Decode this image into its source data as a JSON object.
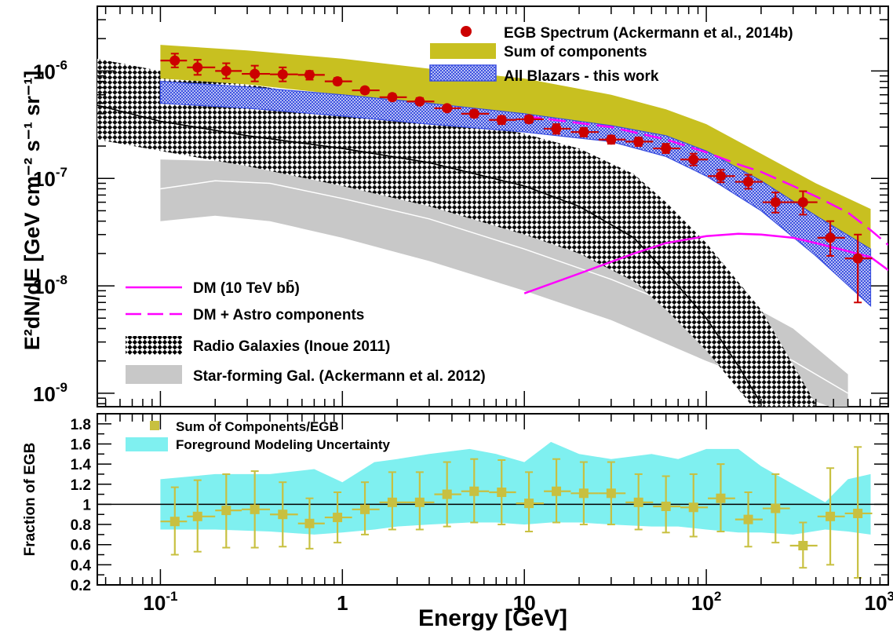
{
  "colors": {
    "egb": "#cc0000",
    "sum_band": "#c8c020",
    "blazar_band": "#3a4fe0",
    "dm": "#ff00ff",
    "radio_hatch": "#000000",
    "starforming": "#c8c8c8",
    "ratio_marker": "#c8c040",
    "foreground_band": "#7ff0f0"
  },
  "chart_data": [
    {
      "type": "line",
      "panel": "spectrum",
      "xlabel": "Energy [GeV]",
      "ylabel": "E²dN/dE [GeV cm⁻² s⁻¹ sr⁻¹]",
      "x_scale": "log",
      "y_scale": "log",
      "xlim": [
        0.045,
        1000
      ],
      "ylim": [
        7.5e-10,
        4e-06
      ],
      "x_ticks": [
        {
          "value": 0.1,
          "base": "10",
          "exp": "-1"
        },
        {
          "value": 1,
          "base": "1",
          "exp": ""
        },
        {
          "value": 10,
          "base": "10",
          "exp": ""
        },
        {
          "value": 100,
          "base": "10",
          "exp": "2"
        },
        {
          "value": 1000,
          "base": "10",
          "exp": "3"
        }
      ],
      "y_ticks": [
        {
          "value": 1e-09,
          "base": "10",
          "exp": "-9"
        },
        {
          "value": 1e-08,
          "base": "10",
          "exp": "-8"
        },
        {
          "value": 1e-07,
          "base": "10",
          "exp": "-7"
        },
        {
          "value": 1e-06,
          "base": "10",
          "exp": "-6"
        }
      ],
      "legend_top_right": [
        {
          "key": "egb",
          "label": "EGB Spectrum (Ackermann et al., 2014b)"
        },
        {
          "key": "sum",
          "label": "Sum of components"
        },
        {
          "key": "blazars",
          "label": "All Blazars - this work"
        }
      ],
      "legend_bottom_left": [
        {
          "key": "dm",
          "label": "DM  (10 TeV bb̄)"
        },
        {
          "key": "dm_astro",
          "label": "DM + Astro components"
        },
        {
          "key": "radio",
          "label": "Radio Galaxies (Inoue 2011)"
        },
        {
          "key": "starforming",
          "label": "Star-forming Gal. (Ackermann et al. 2012)"
        }
      ],
      "egb_points": [
        {
          "x": 0.12,
          "y": 1.25e-06,
          "xlo": 0.1,
          "xhi": 0.14,
          "ylo": 1.08e-06,
          "yhi": 1.45e-06
        },
        {
          "x": 0.16,
          "y": 1.08e-06,
          "xlo": 0.14,
          "xhi": 0.2,
          "ylo": 9.2e-07,
          "yhi": 1.27e-06
        },
        {
          "x": 0.23,
          "y": 1e-06,
          "xlo": 0.2,
          "xhi": 0.28,
          "ylo": 8.5e-07,
          "yhi": 1.18e-06
        },
        {
          "x": 0.33,
          "y": 9.4e-07,
          "xlo": 0.28,
          "xhi": 0.4,
          "ylo": 8e-07,
          "yhi": 1.12e-06
        },
        {
          "x": 0.47,
          "y": 9.3e-07,
          "xlo": 0.4,
          "xhi": 0.57,
          "ylo": 8e-07,
          "yhi": 1.08e-06
        },
        {
          "x": 0.66,
          "y": 9.2e-07,
          "xlo": 0.57,
          "xhi": 0.8,
          "ylo": 8.3e-07,
          "yhi": 1e-06
        },
        {
          "x": 0.94,
          "y": 8e-07,
          "xlo": 0.8,
          "xhi": 1.13,
          "ylo": 7.5e-07,
          "yhi": 8.6e-07
        },
        {
          "x": 1.33,
          "y": 6.6e-07,
          "xlo": 1.13,
          "xhi": 1.6,
          "ylo": 6.2e-07,
          "yhi": 7e-07
        },
        {
          "x": 1.88,
          "y": 5.7e-07,
          "xlo": 1.6,
          "xhi": 2.26,
          "ylo": 5.3e-07,
          "yhi": 6.1e-07
        },
        {
          "x": 2.66,
          "y": 5.2e-07,
          "xlo": 2.26,
          "xhi": 3.2,
          "ylo": 4.9e-07,
          "yhi": 5.6e-07
        },
        {
          "x": 3.76,
          "y": 4.5e-07,
          "xlo": 3.2,
          "xhi": 4.5,
          "ylo": 4.2e-07,
          "yhi": 4.8e-07
        },
        {
          "x": 5.3,
          "y": 4e-07,
          "xlo": 4.5,
          "xhi": 6.4,
          "ylo": 3.7e-07,
          "yhi": 4.3e-07
        },
        {
          "x": 7.5,
          "y": 3.5e-07,
          "xlo": 6.4,
          "xhi": 9.0,
          "ylo": 3.2e-07,
          "yhi": 3.8e-07
        },
        {
          "x": 10.6,
          "y": 3.55e-07,
          "xlo": 9.0,
          "xhi": 12.8,
          "ylo": 3.3e-07,
          "yhi": 3.8e-07
        },
        {
          "x": 15.0,
          "y": 2.9e-07,
          "xlo": 12.8,
          "xhi": 18.0,
          "ylo": 2.6e-07,
          "yhi": 3.2e-07
        },
        {
          "x": 21.2,
          "y": 2.7e-07,
          "xlo": 18.0,
          "xhi": 25.6,
          "ylo": 2.45e-07,
          "yhi": 2.95e-07
        },
        {
          "x": 30.0,
          "y": 2.3e-07,
          "xlo": 25.6,
          "xhi": 36.0,
          "ylo": 2.1e-07,
          "yhi": 2.5e-07
        },
        {
          "x": 42.4,
          "y": 2.2e-07,
          "xlo": 36.0,
          "xhi": 51.0,
          "ylo": 2e-07,
          "yhi": 2.4e-07
        },
        {
          "x": 60.0,
          "y": 1.9e-07,
          "xlo": 51.0,
          "xhi": 72.0,
          "ylo": 1.72e-07,
          "yhi": 2.1e-07
        },
        {
          "x": 85.0,
          "y": 1.5e-07,
          "xlo": 72.0,
          "xhi": 102.0,
          "ylo": 1.32e-07,
          "yhi": 1.7e-07
        },
        {
          "x": 120.0,
          "y": 1.05e-07,
          "xlo": 102.0,
          "xhi": 144.0,
          "ylo": 9.2e-08,
          "yhi": 1.2e-07
        },
        {
          "x": 170.0,
          "y": 9.3e-08,
          "xlo": 144.0,
          "xhi": 204.0,
          "ylo": 8e-08,
          "yhi": 1.08e-07
        },
        {
          "x": 240.0,
          "y": 6e-08,
          "xlo": 204.0,
          "xhi": 288.0,
          "ylo": 4.8e-08,
          "yhi": 7.4e-08
        },
        {
          "x": 340.0,
          "y": 6e-08,
          "xlo": 288.0,
          "xhi": 408.0,
          "ylo": 4.6e-08,
          "yhi": 7.6e-08
        },
        {
          "x": 480.0,
          "y": 2.8e-08,
          "xlo": 408.0,
          "xhi": 577.0,
          "ylo": 1.9e-08,
          "yhi": 4e-08
        },
        {
          "x": 680.0,
          "y": 1.8e-08,
          "xlo": 577.0,
          "xhi": 816.0,
          "ylo": 7e-09,
          "yhi": 3e-08
        }
      ],
      "sum_band": {
        "x": [
          0.1,
          0.3,
          1,
          3,
          10,
          30,
          60,
          100,
          200,
          400,
          800
        ],
        "lo": [
          8.5e-07,
          7.5e-07,
          6e-07,
          4.7e-07,
          3.8e-07,
          2.9e-07,
          2.3e-07,
          1.6e-07,
          7.5e-08,
          4e-08,
          1.8e-08
        ],
        "hi": [
          1.75e-06,
          1.55e-06,
          1.3e-06,
          1.05e-06,
          8.5e-07,
          6e-07,
          4.4e-07,
          3.2e-07,
          1.7e-07,
          9e-08,
          5.2e-08
        ]
      },
      "blazar_band": {
        "x": [
          0.1,
          0.3,
          1,
          3,
          10,
          30,
          60,
          100,
          200,
          400,
          800
        ],
        "lo": [
          5e-07,
          4.5e-07,
          3.8e-07,
          3.2e-07,
          2.7e-07,
          2.2e-07,
          1.6e-07,
          1.05e-07,
          5e-08,
          1.9e-08,
          6.5e-09
        ],
        "hi": [
          8e-07,
          7.1e-07,
          6e-07,
          5e-07,
          4e-07,
          3.1e-07,
          2.5e-07,
          1.8e-07,
          9.5e-08,
          4.5e-08,
          2.2e-08
        ]
      },
      "radio_band": {
        "x": [
          0.045,
          0.1,
          0.3,
          1,
          3,
          10,
          20,
          40,
          60,
          100,
          200,
          400
        ],
        "lo": [
          2.3e-07,
          1.8e-07,
          1.3e-07,
          8.5e-08,
          5.5e-08,
          3e-08,
          2e-08,
          1.1e-08,
          6e-09,
          2.5e-09,
          6e-10,
          1e-10
        ],
        "hi": [
          1.3e-06,
          1e-06,
          7.5e-07,
          5.5e-07,
          4e-07,
          2.6e-07,
          1.9e-07,
          1.1e-07,
          6e-08,
          2.5e-08,
          6e-09,
          8e-10
        ]
      },
      "radio_central": {
        "x": [
          0.045,
          0.1,
          0.3,
          1,
          3,
          10,
          20,
          40,
          70,
          100,
          150,
          200
        ],
        "y": [
          4.8e-07,
          3.4e-07,
          2.5e-07,
          1.9e-07,
          1.4e-07,
          8.5e-08,
          5.5e-08,
          2.8e-08,
          1e-08,
          5e-09,
          1.8e-09,
          8e-10
        ]
      },
      "starforming_band": {
        "x": [
          0.1,
          0.2,
          0.4,
          1,
          3,
          10,
          30,
          100,
          300,
          600
        ],
        "lo": [
          4e-08,
          4.5e-08,
          4e-08,
          2.8e-08,
          1.7e-08,
          9e-09,
          4.8e-09,
          2e-09,
          1e-09,
          6.5e-10
        ],
        "hi": [
          1.5e-07,
          1.45e-07,
          1.35e-07,
          1.05e-07,
          7e-08,
          4.2e-08,
          2.4e-08,
          1.1e-08,
          4e-09,
          1.5e-09
        ]
      },
      "starforming_central": {
        "x": [
          0.1,
          0.2,
          0.4,
          1,
          3,
          10,
          30,
          100,
          300,
          600
        ],
        "y": [
          8e-08,
          9.5e-08,
          9e-08,
          6.5e-08,
          4.2e-08,
          2.2e-08,
          1.15e-08,
          5e-09,
          2e-09,
          1e-09
        ]
      },
      "dm_curve": {
        "x": [
          10,
          20,
          40,
          60,
          100,
          150,
          200,
          300,
          400,
          600,
          800,
          1000
        ],
        "y": [
          8.5e-09,
          1.3e-08,
          2e-08,
          2.5e-08,
          2.9e-08,
          3.05e-08,
          3e-08,
          2.8e-08,
          2.5e-08,
          2.1e-08,
          1.85e-08,
          1.4e-08
        ]
      },
      "dm_astro_curve": {
        "x": [
          10,
          30,
          60,
          100,
          150,
          200,
          300,
          400,
          600,
          800,
          1000
        ],
        "y": [
          3.8e-07,
          3e-07,
          2.3e-07,
          1.75e-07,
          1.35e-07,
          1.15e-07,
          8.5e-08,
          6.8e-08,
          4.8e-08,
          3.3e-08,
          2.4e-08
        ]
      }
    },
    {
      "type": "scatter",
      "panel": "ratio",
      "ylabel": "Fraction of EGB",
      "x_scale": "log",
      "xlim": [
        0.045,
        1000
      ],
      "ylim": [
        0.2,
        1.9
      ],
      "y_ticks": [
        {
          "value": 0.2,
          "label": "0.2"
        },
        {
          "value": 0.4,
          "label": "0.4"
        },
        {
          "value": 0.6,
          "label": "0.6"
        },
        {
          "value": 0.8,
          "label": "0.8"
        },
        {
          "value": 1.0,
          "label": "1"
        },
        {
          "value": 1.2,
          "label": "1.2"
        },
        {
          "value": 1.4,
          "label": "1.4"
        },
        {
          "value": 1.6,
          "label": "1.6"
        },
        {
          "value": 1.8,
          "label": "1.8"
        }
      ],
      "reference_line": 1.0,
      "legend": [
        {
          "key": "ratio",
          "label": "Sum of Components/EGB"
        },
        {
          "key": "foreground",
          "label": "Foreground Modeling Uncertainty"
        }
      ],
      "foreground_band": {
        "x": [
          0.1,
          0.2,
          0.4,
          0.7,
          1.0,
          1.5,
          2,
          3,
          5,
          7,
          10,
          14,
          20,
          30,
          50,
          70,
          100,
          150,
          200,
          300,
          450,
          600,
          800
        ],
        "lo": [
          0.75,
          0.75,
          0.73,
          0.7,
          0.72,
          0.75,
          0.78,
          0.8,
          0.82,
          0.82,
          0.8,
          0.82,
          0.82,
          0.8,
          0.78,
          0.78,
          0.75,
          0.72,
          0.72,
          0.7,
          0.75,
          0.73,
          0.7
        ],
        "hi": [
          1.25,
          1.3,
          1.3,
          1.35,
          1.22,
          1.42,
          1.45,
          1.5,
          1.55,
          1.5,
          1.42,
          1.62,
          1.5,
          1.45,
          1.5,
          1.45,
          1.55,
          1.55,
          1.38,
          1.2,
          1.02,
          1.25,
          1.3
        ]
      },
      "points": [
        {
          "x": 0.12,
          "y": 0.83,
          "xlo": 0.1,
          "xhi": 0.14,
          "ylo": 0.5,
          "yhi": 1.17
        },
        {
          "x": 0.16,
          "y": 0.88,
          "xlo": 0.14,
          "xhi": 0.2,
          "ylo": 0.53,
          "yhi": 1.24
        },
        {
          "x": 0.23,
          "y": 0.94,
          "xlo": 0.2,
          "xhi": 0.28,
          "ylo": 0.57,
          "yhi": 1.3
        },
        {
          "x": 0.33,
          "y": 0.95,
          "xlo": 0.28,
          "xhi": 0.4,
          "ylo": 0.57,
          "yhi": 1.33
        },
        {
          "x": 0.47,
          "y": 0.9,
          "xlo": 0.4,
          "xhi": 0.57,
          "ylo": 0.58,
          "yhi": 1.22
        },
        {
          "x": 0.66,
          "y": 0.81,
          "xlo": 0.57,
          "xhi": 0.8,
          "ylo": 0.56,
          "yhi": 1.06
        },
        {
          "x": 0.94,
          "y": 0.87,
          "xlo": 0.8,
          "xhi": 1.13,
          "ylo": 0.62,
          "yhi": 1.12
        },
        {
          "x": 1.33,
          "y": 0.95,
          "xlo": 1.13,
          "xhi": 1.6,
          "ylo": 0.7,
          "yhi": 1.22
        },
        {
          "x": 1.88,
          "y": 1.02,
          "xlo": 1.6,
          "xhi": 2.26,
          "ylo": 0.75,
          "yhi": 1.32
        },
        {
          "x": 2.66,
          "y": 1.02,
          "xlo": 2.26,
          "xhi": 3.2,
          "ylo": 0.75,
          "yhi": 1.32
        },
        {
          "x": 3.76,
          "y": 1.1,
          "xlo": 3.2,
          "xhi": 4.5,
          "ylo": 0.78,
          "yhi": 1.42
        },
        {
          "x": 5.3,
          "y": 1.13,
          "xlo": 4.5,
          "xhi": 6.4,
          "ylo": 0.82,
          "yhi": 1.45
        },
        {
          "x": 7.5,
          "y": 1.12,
          "xlo": 6.4,
          "xhi": 9.0,
          "ylo": 0.8,
          "yhi": 1.44
        },
        {
          "x": 10.6,
          "y": 1.01,
          "xlo": 9.0,
          "xhi": 12.8,
          "ylo": 0.73,
          "yhi": 1.32
        },
        {
          "x": 15.0,
          "y": 1.13,
          "xlo": 12.8,
          "xhi": 18.0,
          "ylo": 0.82,
          "yhi": 1.45
        },
        {
          "x": 21.2,
          "y": 1.11,
          "xlo": 18.0,
          "xhi": 25.6,
          "ylo": 0.8,
          "yhi": 1.42
        },
        {
          "x": 30.0,
          "y": 1.11,
          "xlo": 25.6,
          "xhi": 36.0,
          "ylo": 0.8,
          "yhi": 1.42
        },
        {
          "x": 42.4,
          "y": 1.02,
          "xlo": 36.0,
          "xhi": 51.0,
          "ylo": 0.75,
          "yhi": 1.3
        },
        {
          "x": 60.0,
          "y": 0.98,
          "xlo": 51.0,
          "xhi": 72.0,
          "ylo": 0.72,
          "yhi": 1.28
        },
        {
          "x": 85.0,
          "y": 0.97,
          "xlo": 72.0,
          "xhi": 102.0,
          "ylo": 0.68,
          "yhi": 1.3
        },
        {
          "x": 120.0,
          "y": 1.06,
          "xlo": 102.0,
          "xhi": 144.0,
          "ylo": 0.73,
          "yhi": 1.4
        },
        {
          "x": 170.0,
          "y": 0.85,
          "xlo": 144.0,
          "xhi": 204.0,
          "ylo": 0.58,
          "yhi": 1.12
        },
        {
          "x": 240.0,
          "y": 0.96,
          "xlo": 204.0,
          "xhi": 288.0,
          "ylo": 0.62,
          "yhi": 1.3
        },
        {
          "x": 340.0,
          "y": 0.59,
          "xlo": 288.0,
          "xhi": 408.0,
          "ylo": 0.37,
          "yhi": 0.82
        },
        {
          "x": 480.0,
          "y": 0.88,
          "xlo": 408.0,
          "xhi": 577.0,
          "ylo": 0.4,
          "yhi": 1.36
        },
        {
          "x": 680.0,
          "y": 0.91,
          "xlo": 577.0,
          "xhi": 816.0,
          "ylo": 0.27,
          "yhi": 1.57
        }
      ]
    }
  ]
}
